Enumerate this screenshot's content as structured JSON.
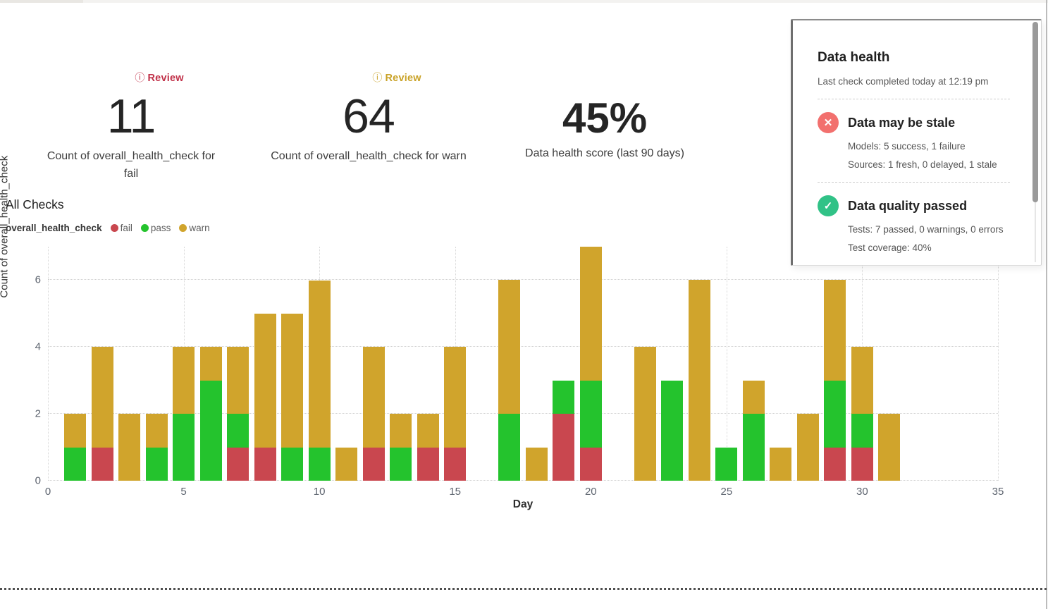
{
  "kpis": [
    {
      "review_label": "Review",
      "review_color": "#C13149",
      "value": "11",
      "label": "Count of overall_health_check for fail"
    },
    {
      "review_label": "Review",
      "review_color": "#C9A227",
      "value": "64",
      "label": "Count of overall_health_check for warn"
    },
    {
      "value": "45%",
      "label": "Data health score (last 90 days)"
    }
  ],
  "chart_data": {
    "type": "bar",
    "stacked": true,
    "title": "All Checks",
    "legend_field": "overall_health_check",
    "xlabel": "Day",
    "ylabel": "Count of overall_health_check",
    "xlim": [
      0,
      35
    ],
    "ylim": [
      0,
      7
    ],
    "x_ticks": [
      0,
      5,
      10,
      15,
      20,
      25,
      30,
      35
    ],
    "y_ticks": [
      0,
      2,
      4,
      6
    ],
    "grid": "dotted",
    "legend_position": "top-left",
    "x": [
      1,
      2,
      3,
      4,
      5,
      6,
      7,
      8,
      9,
      10,
      11,
      12,
      13,
      14,
      15,
      16,
      17,
      18,
      19,
      20,
      21,
      22,
      23,
      24,
      25,
      26,
      27,
      28,
      29,
      30,
      31
    ],
    "legend": [
      {
        "name": "fail",
        "color": "#C9474F"
      },
      {
        "name": "pass",
        "color": "#24C32D"
      },
      {
        "name": "warn",
        "color": "#D0A42C"
      }
    ],
    "series": [
      {
        "name": "fail",
        "values": [
          0,
          1,
          0,
          0,
          0,
          0,
          1,
          1,
          0,
          0,
          0,
          1,
          0,
          1,
          1,
          0,
          0,
          0,
          2,
          1,
          0,
          0,
          0,
          0,
          0,
          0,
          0,
          0,
          1,
          1,
          0
        ]
      },
      {
        "name": "pass",
        "values": [
          1,
          0,
          0,
          1,
          2,
          3,
          1,
          0,
          1,
          1,
          0,
          0,
          1,
          0,
          0,
          0,
          2,
          0,
          1,
          2,
          0,
          0,
          3,
          0,
          1,
          2,
          0,
          0,
          2,
          1,
          0
        ]
      },
      {
        "name": "warn",
        "values": [
          1,
          3,
          2,
          1,
          2,
          1,
          2,
          4,
          4,
          5,
          1,
          3,
          1,
          1,
          3,
          0,
          4,
          1,
          0,
          4,
          0,
          4,
          0,
          6,
          0,
          1,
          1,
          2,
          3,
          2,
          2
        ]
      }
    ]
  },
  "panel": {
    "title": "Data health",
    "subtitle": "Last check completed today at 12:19 pm",
    "sections": [
      {
        "icon": "x",
        "icon_color": "#F2706E",
        "title": "Data may be stale",
        "lines": [
          "Models: 5 success, 1 failure",
          "Sources: 1 fresh, 0 delayed, 1 stale"
        ]
      },
      {
        "icon": "check",
        "icon_color": "#31C287",
        "title": "Data quality passed",
        "lines": [
          "Tests: 7 passed, 0 warnings, 0 errors",
          "Test coverage: 40%"
        ]
      }
    ]
  },
  "icons": {
    "info": "ⓘ",
    "x": "✕",
    "check": "✓"
  }
}
